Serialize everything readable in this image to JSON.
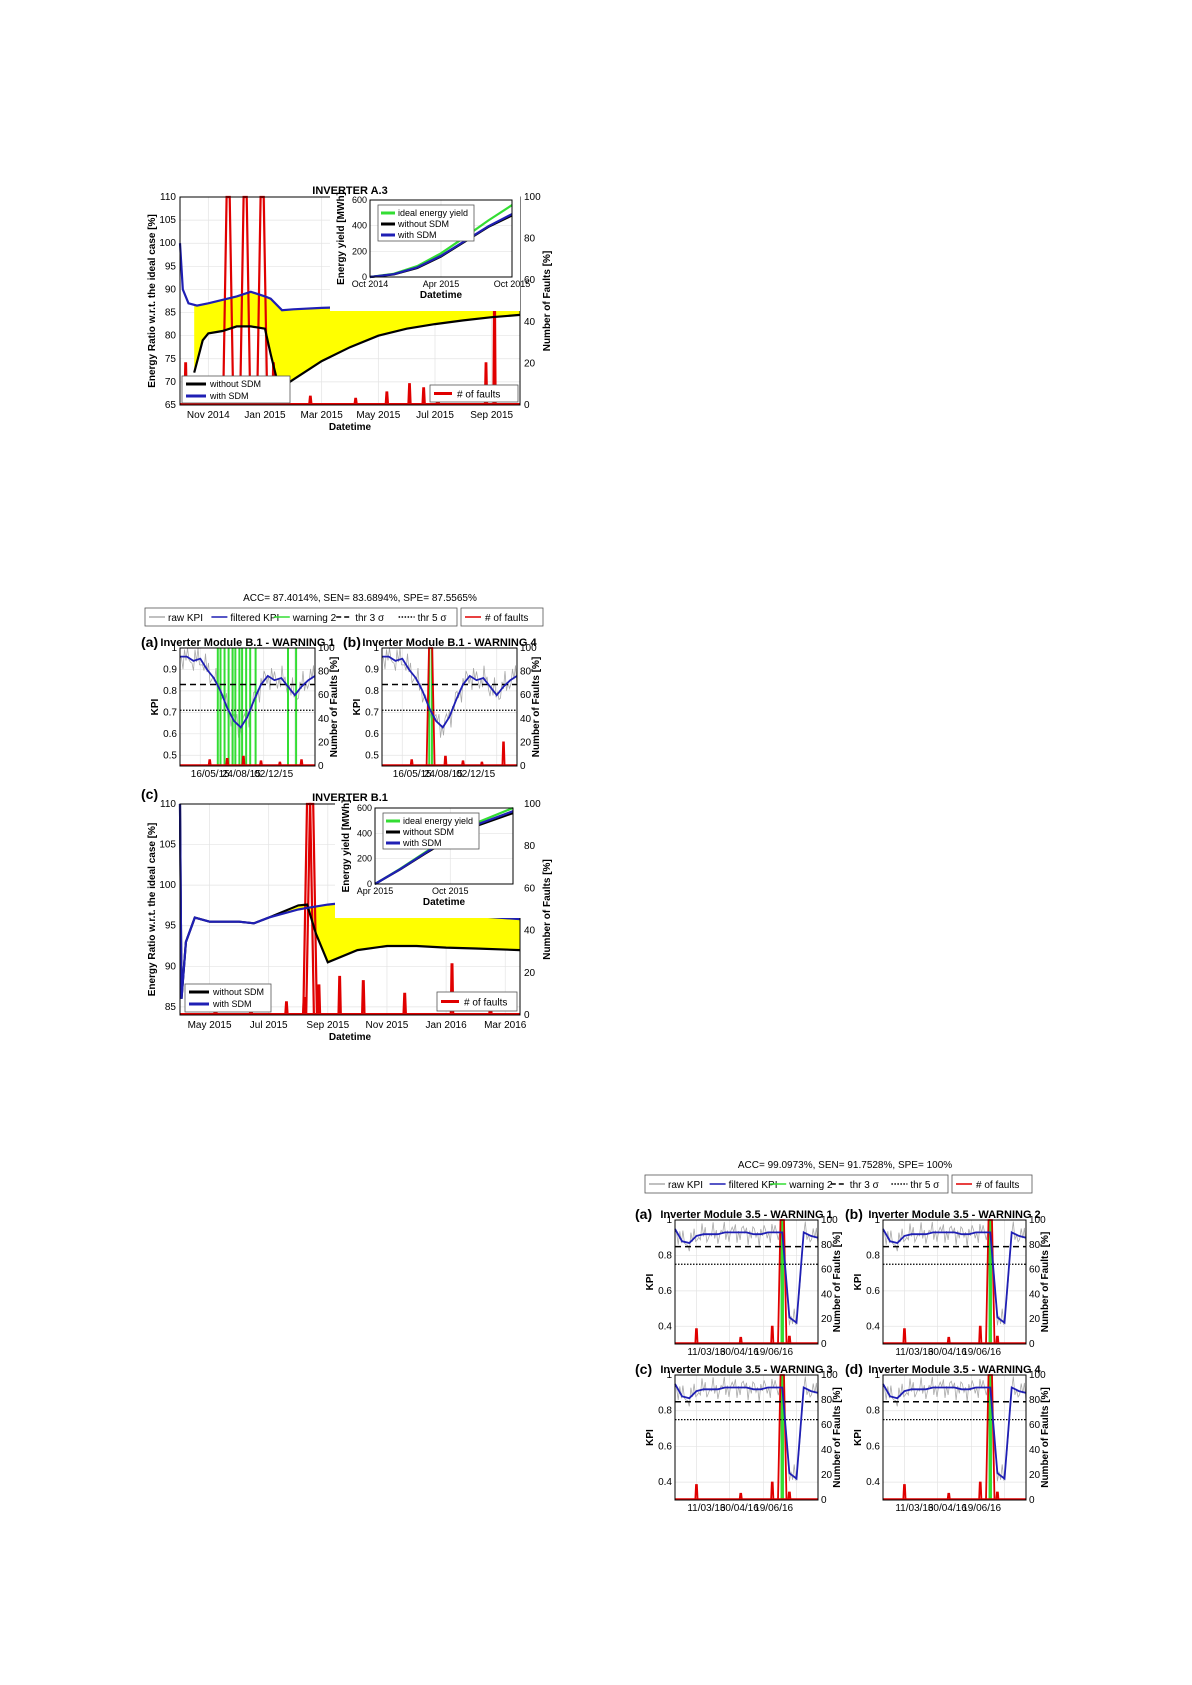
{
  "chart_data": [
    {
      "id": "fig_a3",
      "type": "line",
      "title": "INVERTER A.3",
      "xlabel": "Datetime",
      "ylabel": "Energy Ratio w.r.t. the ideal case [%]",
      "y2label": "Number of Faults [%]",
      "ylim": [
        65,
        110
      ],
      "y2lim": [
        0,
        100
      ],
      "yticks": [
        65,
        70,
        75,
        80,
        85,
        90,
        95,
        100,
        105,
        110
      ],
      "y2ticks": [
        0,
        20,
        40,
        60,
        80,
        100
      ],
      "xticks": [
        "Nov 2014",
        "Jan 2015",
        "Mar 2015",
        "May 2015",
        "Jul 2015",
        "Sep 2015"
      ],
      "xlim": [
        0,
        12
      ],
      "xtick_pos": [
        1,
        3,
        5,
        7,
        9,
        11
      ],
      "series": [
        {
          "name": "with SDM",
          "color": "#1f1fb4",
          "x": [
            0,
            0.1,
            0.3,
            0.6,
            1,
            2,
            2.5,
            3,
            3.2,
            3.6,
            4,
            5,
            6,
            7,
            8,
            9,
            10,
            11,
            12
          ],
          "y": [
            100,
            90,
            87,
            86.5,
            87,
            88.5,
            89.5,
            88.5,
            88,
            85.5,
            85.7,
            86,
            86.2,
            86.4,
            86.6,
            86.8,
            87,
            87.2,
            87.5
          ]
        },
        {
          "name": "without SDM",
          "color": "#000000",
          "x": [
            0.5,
            0.8,
            1,
            1.5,
            2,
            2.5,
            3,
            3.2,
            3.5,
            4,
            5,
            6,
            7,
            8,
            9,
            10,
            11,
            12
          ],
          "y": [
            72,
            79,
            80.5,
            81,
            82,
            82,
            81.5,
            76,
            68.5,
            70.5,
            74.5,
            77.5,
            80,
            81.5,
            82.5,
            83.3,
            84,
            84.5
          ]
        }
      ],
      "faults": {
        "name": "# of faults",
        "color": "#e00000",
        "spikes": [
          [
            0.2,
            20
          ],
          [
            1.7,
            100
          ],
          [
            2.3,
            100
          ],
          [
            2.9,
            100
          ],
          [
            3.3,
            20
          ],
          [
            3.7,
            8
          ],
          [
            4.6,
            4
          ],
          [
            6.2,
            3
          ],
          [
            7.3,
            6
          ],
          [
            8.1,
            10
          ],
          [
            8.6,
            8
          ],
          [
            9.1,
            6
          ],
          [
            10.8,
            20
          ],
          [
            11.1,
            60
          ]
        ]
      },
      "legend": [
        {
          "label": "without SDM",
          "color": "#000000"
        },
        {
          "label": "with SDM",
          "color": "#1f1fb4"
        }
      ],
      "fault_legend": "# of faults",
      "inset": {
        "ylabel": "Energy yield [MWh]",
        "xlabel": "Datetime",
        "yticks": [
          0,
          200,
          400,
          600
        ],
        "ylim": [
          0,
          600
        ],
        "xticks": [
          "Oct 2014",
          "Apr 2015",
          "Oct 2015"
        ],
        "xlim": [
          0,
          12
        ],
        "xtick_pos": [
          0,
          6,
          12
        ],
        "series": [
          {
            "name": "ideal energy yield",
            "color": "#33dd33",
            "x": [
              0,
              2,
              4,
              6,
              8,
              10,
              12
            ],
            "y": [
              0,
              25,
              85,
              185,
              310,
              440,
              560
            ]
          },
          {
            "name": "without SDM",
            "color": "#000000",
            "x": [
              0,
              2,
              4,
              6,
              8,
              10,
              12
            ],
            "y": [
              0,
              20,
              70,
              160,
              275,
              390,
              480
            ]
          },
          {
            "name": "with SDM",
            "color": "#1f1fb4",
            "x": [
              0,
              2,
              4,
              6,
              8,
              10,
              12
            ],
            "y": [
              0,
              22,
              75,
              165,
              280,
              395,
              490
            ]
          }
        ]
      }
    },
    {
      "id": "fig_b1",
      "type": "line",
      "title": "INVERTER B.1",
      "xlabel": "Datetime",
      "ylabel": "Energy Ratio w.r.t. the ideal case [%]",
      "y2label": "Number of Faults [%]",
      "ylim": [
        84,
        110
      ],
      "y2lim": [
        0,
        100
      ],
      "yticks": [
        85,
        90,
        95,
        100,
        105,
        110
      ],
      "y2ticks": [
        0,
        20,
        40,
        60,
        80,
        100
      ],
      "xticks": [
        "May 2015",
        "Jul 2015",
        "Sep 2015",
        "Nov 2015",
        "Jan 2016",
        "Mar 2016"
      ],
      "xlim": [
        0,
        11.5
      ],
      "xtick_pos": [
        1,
        3,
        5,
        7,
        9,
        11
      ],
      "series": [
        {
          "name": "with SDM",
          "color": "#1f1fb4",
          "x": [
            0,
            0.05,
            0.2,
            0.5,
            1,
            2,
            2.5,
            3,
            4,
            4.3,
            5,
            6,
            7,
            8,
            9,
            10,
            11.5
          ],
          "y": [
            110,
            86,
            93,
            96,
            95.5,
            95.5,
            95.3,
            96,
            97,
            97.2,
            97.6,
            98,
            97.8,
            97.3,
            96.6,
            96.2,
            95.8
          ]
        },
        {
          "name": "without SDM",
          "color": "#000000",
          "x": [
            0,
            0.05,
            0.2,
            0.5,
            1,
            2,
            2.5,
            3,
            4,
            4.3,
            4.6,
            5,
            6,
            7,
            8,
            9,
            10,
            11.5
          ],
          "y": [
            110,
            86,
            93,
            96,
            95.5,
            95.5,
            95.3,
            96,
            97.5,
            97.6,
            94,
            90.5,
            92,
            92.5,
            92.5,
            92.3,
            92.2,
            92
          ]
        }
      ],
      "faults": {
        "name": "# of faults",
        "color": "#e00000",
        "spikes": [
          [
            1.2,
            6
          ],
          [
            2.4,
            4
          ],
          [
            3.6,
            6
          ],
          [
            4.2,
            8
          ],
          [
            4.35,
            100
          ],
          [
            4.45,
            100
          ],
          [
            4.7,
            14
          ],
          [
            5.4,
            18
          ],
          [
            6.2,
            16
          ],
          [
            7.6,
            10
          ],
          [
            9.2,
            24
          ],
          [
            10.5,
            6
          ]
        ]
      },
      "legend": [
        {
          "label": "without SDM",
          "color": "#000000"
        },
        {
          "label": "with SDM",
          "color": "#1f1fb4"
        }
      ],
      "fault_legend": "# of faults",
      "inset": {
        "ylabel": "Energy yield [MWh]",
        "xlabel": "Datetime",
        "yticks": [
          0,
          200,
          400,
          600
        ],
        "ylim": [
          0,
          600
        ],
        "xticks": [
          "Apr 2015",
          "Oct 2015"
        ],
        "xlim": [
          0,
          11
        ],
        "xtick_pos": [
          0,
          6
        ],
        "series": [
          {
            "name": "ideal energy yield",
            "color": "#33dd33",
            "x": [
              0,
              2,
              4,
              6,
              8,
              11
            ],
            "y": [
              0,
              120,
              250,
              380,
              480,
              600
            ]
          },
          {
            "name": "without SDM",
            "color": "#000000",
            "x": [
              0,
              2,
              4,
              6,
              8,
              11
            ],
            "y": [
              0,
              115,
              240,
              360,
              455,
              560
            ]
          },
          {
            "name": "with SDM",
            "color": "#1f1fb4",
            "x": [
              0,
              2,
              4,
              6,
              8,
              11
            ],
            "y": [
              0,
              117,
              245,
              370,
              465,
              575
            ]
          }
        ]
      }
    },
    {
      "id": "kpi_b1",
      "type": "line",
      "header": "ACC= 87.4014%, SEN= 83.6894%, SPE= 87.5565%",
      "legend": [
        "raw KPI",
        "filtered KPI",
        "warning 2",
        "thr 3 σ",
        "thr 5 σ"
      ],
      "fault_legend": "# of faults",
      "panels": [
        {
          "label": "(a)",
          "title": "Inverter Module B.1 - WARNING 1",
          "xticks": [
            "16/05/15",
            "24/08/15",
            "02/12/15"
          ],
          "ylabel": "KPI",
          "y2label": "Number of Faults [%]",
          "yticks": [
            0.5,
            0.6,
            0.7,
            0.8,
            0.9,
            1
          ],
          "ylim": [
            0.45,
            1
          ],
          "y2ticks": [
            0,
            20,
            40,
            60,
            80,
            100
          ],
          "thr3": 0.83,
          "thr5": 0.71,
          "filtered": [
            0.96,
            0.96,
            0.94,
            0.95,
            0.9,
            0.86,
            0.8,
            0.72,
            0.66,
            0.63,
            0.68,
            0.76,
            0.83,
            0.87,
            0.85,
            0.86,
            0.82,
            0.78,
            0.82,
            0.85,
            0.87
          ],
          "warnings": [
            0.28,
            0.3,
            0.33,
            0.36,
            0.39,
            0.41,
            0.44,
            0.46,
            0.49,
            0.52,
            0.56,
            0.8,
            0.86
          ],
          "faults": [
            [
              0.22,
              5
            ],
            [
              0.35,
              6
            ],
            [
              0.47,
              8
            ],
            [
              0.6,
              4
            ],
            [
              0.74,
              3
            ],
            [
              0.9,
              5
            ]
          ]
        },
        {
          "label": "(b)",
          "title": "Inverter Module B.1 - WARNING 4",
          "xticks": [
            "16/05/15",
            "24/08/15",
            "02/12/15"
          ],
          "ylabel": "KPI",
          "y2label": "Number of Faults [%]",
          "yticks": [
            0.5,
            0.6,
            0.7,
            0.8,
            0.9,
            1
          ],
          "ylim": [
            0.45,
            1
          ],
          "y2ticks": [
            0,
            20,
            40,
            60,
            80,
            100
          ],
          "thr3": 0.83,
          "thr5": 0.71,
          "filtered": [
            0.96,
            0.96,
            0.94,
            0.95,
            0.9,
            0.86,
            0.8,
            0.72,
            0.66,
            0.63,
            0.68,
            0.76,
            0.83,
            0.87,
            0.85,
            0.86,
            0.82,
            0.78,
            0.82,
            0.85,
            0.87
          ],
          "warnings": [
            0.35,
            0.37
          ],
          "faults": [
            [
              0.22,
              5
            ],
            [
              0.36,
              100
            ],
            [
              0.47,
              8
            ],
            [
              0.6,
              4
            ],
            [
              0.74,
              3
            ],
            [
              0.9,
              20
            ]
          ]
        }
      ]
    },
    {
      "id": "kpi_35",
      "type": "line",
      "header": "ACC= 99.0973%, SEN= 91.7528%, SPE= 100%",
      "legend": [
        "raw KPI",
        "filtered KPI",
        "warning 2",
        "thr 3 σ",
        "thr 5 σ"
      ],
      "fault_legend": "# of faults",
      "panels": [
        {
          "label": "(a)",
          "title": "Inverter Module 3.5 - WARNING 1",
          "xticks": [
            "11/03/16",
            "30/04/16",
            "19/06/16"
          ],
          "ylabel": "KPI",
          "y2label": "Number of Faults [%]",
          "yticks": [
            0.4,
            0.6,
            0.8,
            1
          ],
          "ylim": [
            0.3,
            1
          ],
          "y2ticks": [
            0,
            20,
            40,
            60,
            80,
            100
          ],
          "thr3": 0.85,
          "thr5": 0.75
        },
        {
          "label": "(b)",
          "title": "Inverter Module 3.5 - WARNING 2",
          "xticks": [
            "11/03/16",
            "30/04/16",
            "19/06/16"
          ],
          "ylabel": "KPI",
          "y2label": "Number of Faults [%]",
          "yticks": [
            0.4,
            0.6,
            0.8,
            1
          ],
          "ylim": [
            0.3,
            1
          ],
          "y2ticks": [
            0,
            20,
            40,
            60,
            80,
            100
          ],
          "thr3": 0.85,
          "thr5": 0.75
        },
        {
          "label": "(c)",
          "title": "Inverter Module 3.5 - WARNING 3",
          "xticks": [
            "11/03/16",
            "30/04/16",
            "19/06/16"
          ],
          "ylabel": "KPI",
          "y2label": "Number of Faults [%]",
          "yticks": [
            0.4,
            0.6,
            0.8,
            1
          ],
          "ylim": [
            0.3,
            1
          ],
          "y2ticks": [
            0,
            20,
            40,
            60,
            80,
            100
          ],
          "thr3": 0.85,
          "thr5": 0.75
        },
        {
          "label": "(d)",
          "title": "Inverter Module 3.5 - WARNING 4",
          "xticks": [
            "11/03/16",
            "30/04/16",
            "19/06/16"
          ],
          "ylabel": "KPI",
          "y2label": "Number of Faults [%]",
          "yticks": [
            0.4,
            0.6,
            0.8,
            1
          ],
          "ylim": [
            0.3,
            1
          ],
          "y2ticks": [
            0,
            20,
            40,
            60,
            80,
            100
          ],
          "thr3": 0.85,
          "thr5": 0.75
        }
      ],
      "filtered": [
        0.95,
        0.88,
        0.87,
        0.91,
        0.92,
        0.92,
        0.92,
        0.93,
        0.93,
        0.93,
        0.93,
        0.92,
        0.92,
        0.93,
        0.93,
        0.93,
        0.45,
        0.42,
        0.93,
        0.91,
        0.9
      ],
      "faults": [
        [
          0.15,
          12
        ],
        [
          0.46,
          5
        ],
        [
          0.68,
          14
        ],
        [
          0.75,
          100
        ],
        [
          0.8,
          6
        ]
      ]
    }
  ]
}
